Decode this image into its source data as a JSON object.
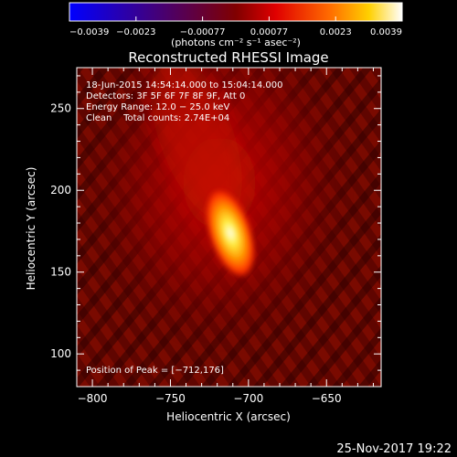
{
  "chart_data": {
    "type": "heatmap",
    "title": "Reconstructed RHESSI Image",
    "xlabel": "Heliocentric X (arcsec)",
    "ylabel": "Heliocentric Y (arcsec)",
    "xlim": [
      -810,
      -615
    ],
    "ylim": [
      80,
      275
    ],
    "x_ticks": [
      -800,
      -750,
      -700,
      -650
    ],
    "y_ticks": [
      100,
      150,
      200,
      250
    ],
    "x_tick_labels": [
      "−800",
      "−750",
      "−700",
      "−650"
    ],
    "y_tick_labels": [
      "100",
      "150",
      "200",
      "250"
    ],
    "peak": [
      -712,
      176
    ],
    "colorbar": {
      "min": -0.0039,
      "max": 0.0039,
      "ticks": [
        -0.0039,
        -0.0023,
        -0.00077,
        0.00077,
        0.0023,
        0.0039
      ],
      "tick_labels": [
        "−0.0039",
        "−0.0023",
        "−0.00077",
        "0.00077",
        "0.0023",
        "0.0039"
      ],
      "unit_label": "(photons cm⁻² s⁻¹ asec⁻²)",
      "colors": [
        "#0000ff",
        "#400080",
        "#800000",
        "#e00000",
        "#ff6a00",
        "#ffd000",
        "#ffffff"
      ]
    },
    "annotations": [
      "18-Jun-2015 14:54:14.000 to 15:04:14.000",
      "Detectors: 3F 5F 6F 7F 8F 9F, Att 0",
      "Energy Range: 12.0 − 25.0 keV",
      "Clean    Total counts: 2.74E+04"
    ],
    "peak_label": "Position of Peak = [−712,176]",
    "footer_date": "25-Nov-2017 19:22"
  }
}
